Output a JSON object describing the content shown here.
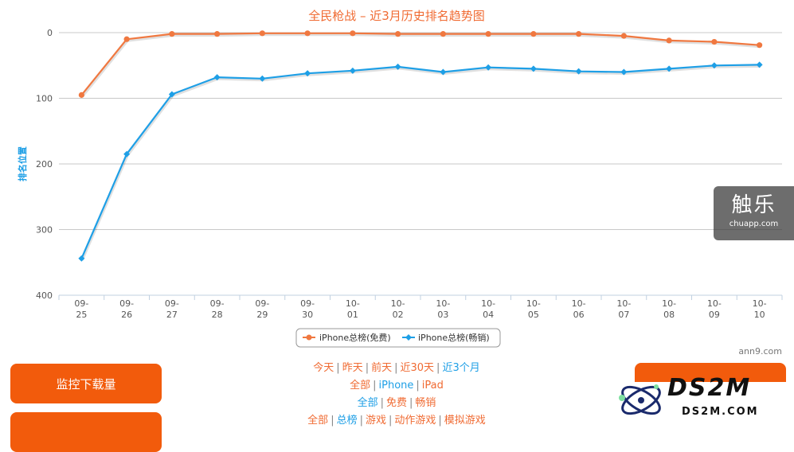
{
  "chart_data": {
    "type": "line",
    "title": "全民枪战 – 近3月历史排名趋势图",
    "ylabel": "排名位置",
    "xlabel": "",
    "y_reversed": true,
    "ylim": [
      0,
      400
    ],
    "yticks": [
      0,
      100,
      200,
      300,
      400
    ],
    "categories": [
      {
        "month": "09-",
        "day": "25"
      },
      {
        "month": "09-",
        "day": "26"
      },
      {
        "month": "09-",
        "day": "27"
      },
      {
        "month": "09-",
        "day": "28"
      },
      {
        "month": "09-",
        "day": "29"
      },
      {
        "month": "09-",
        "day": "30"
      },
      {
        "month": "10-",
        "day": "01"
      },
      {
        "month": "10-",
        "day": "02"
      },
      {
        "month": "10-",
        "day": "03"
      },
      {
        "month": "10-",
        "day": "04"
      },
      {
        "month": "10-",
        "day": "05"
      },
      {
        "month": "10-",
        "day": "06"
      },
      {
        "month": "10-",
        "day": "07"
      },
      {
        "month": "10-",
        "day": "08"
      },
      {
        "month": "10-",
        "day": "09"
      },
      {
        "month": "10-",
        "day": "10"
      }
    ],
    "series": [
      {
        "name": "iPhone总榜(免费)",
        "color": "#f07840",
        "marker": "circle",
        "values": [
          95,
          10,
          2,
          2,
          1,
          1,
          1,
          2,
          2,
          2,
          2,
          2,
          5,
          12,
          14,
          19
        ]
      },
      {
        "name": "iPhone总榜(畅销)",
        "color": "#1e9fe6",
        "marker": "diamond",
        "values": [
          344,
          185,
          94,
          68,
          70,
          62,
          58,
          52,
          60,
          53,
          55,
          59,
          60,
          55,
          50,
          49
        ]
      }
    ],
    "legend_position": "bottom-center",
    "grid": true,
    "credit": "ann9.com"
  },
  "buttons": {
    "monitor_downloads": "监控下载量"
  },
  "filters": {
    "time": [
      "今天",
      "昨天",
      "前天",
      "近30天",
      "近3个月"
    ],
    "device": [
      "全部",
      "iPhone",
      "iPad"
    ],
    "price": [
      "全部",
      "免费",
      "畅销"
    ],
    "category": [
      "全部",
      "总榜",
      "游戏",
      "动作游戏",
      "模拟游戏"
    ]
  },
  "watermarks": {
    "chuapp_title": "触乐",
    "chuapp_url": "chuapp.com",
    "ds2m_title": "DS2M",
    "ds2m_url": "DS2M.COM"
  }
}
